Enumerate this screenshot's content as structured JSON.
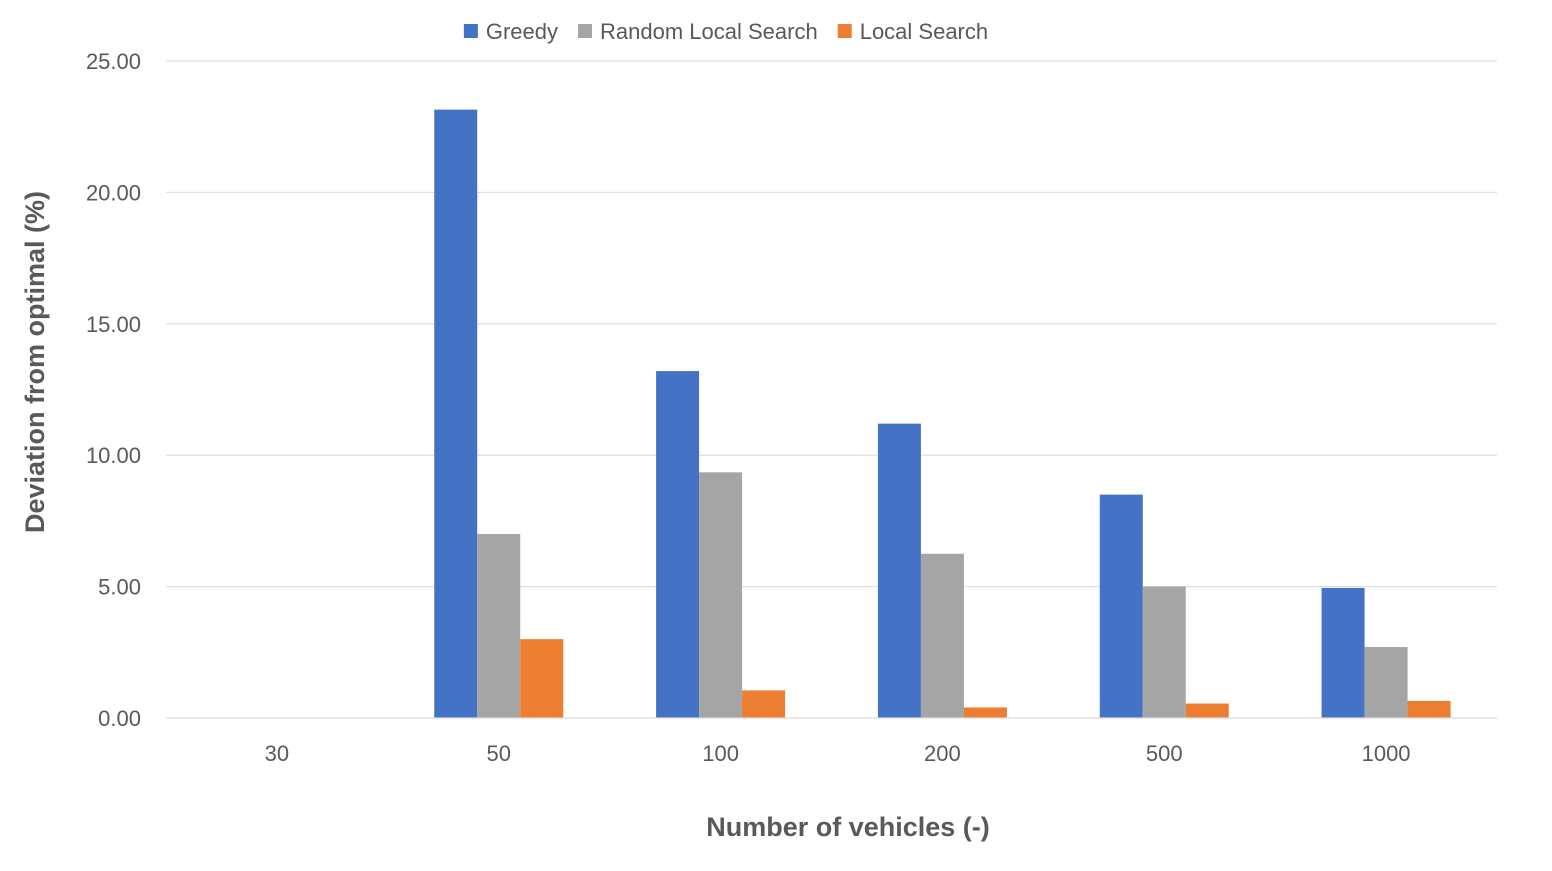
{
  "chart_data": {
    "type": "bar",
    "categories": [
      "30",
      "50",
      "100",
      "200",
      "500",
      "1000"
    ],
    "series": [
      {
        "name": "Greedy",
        "color": "#4472c4",
        "values": [
          0,
          23.15,
          13.2,
          11.2,
          8.5,
          4.95
        ]
      },
      {
        "name": "Random Local Search",
        "color": "#a5a5a5",
        "values": [
          0,
          7.0,
          9.35,
          6.25,
          5.0,
          2.7
        ]
      },
      {
        "name": "Local Search",
        "color": "#ed7d31",
        "values": [
          0,
          3.0,
          1.05,
          0.4,
          0.55,
          0.65
        ]
      }
    ],
    "xlabel": "Number of vehicles (-)",
    "ylabel": "Deviation from optimal (%)",
    "ylim": [
      0,
      25
    ],
    "yticks": [
      "0.00",
      "5.00",
      "10.00",
      "15.00",
      "20.00",
      "25.00"
    ],
    "grid": true,
    "legend_position": "top"
  }
}
